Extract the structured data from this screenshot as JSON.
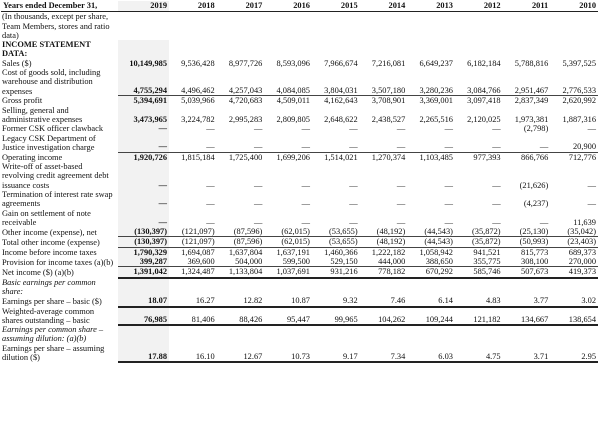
{
  "header": {
    "title": "Years ended December 31,",
    "note": "(In thousands, except per share, Team Members, stores and ratio data)",
    "years": [
      "2019",
      "2018",
      "2017",
      "2016",
      "2015",
      "2014",
      "2013",
      "2012",
      "2011",
      "2010"
    ]
  },
  "rows": [
    {
      "label": "INCOME STATEMENT DATA:",
      "type": "section",
      "values": []
    },
    {
      "label": "Sales ($)",
      "values": [
        "10,149,985",
        "9,536,428",
        "8,977,726",
        "8,593,096",
        "7,966,674",
        "7,216,081",
        "6,649,237",
        "6,182,184",
        "5,788,816",
        "5,397,525"
      ]
    },
    {
      "label": "Cost of goods sold, including warehouse and distribution expenses",
      "type": "rule",
      "values": [
        "4,755,294",
        "4,496,462",
        "4,257,043",
        "4,084,085",
        "3,804,031",
        "3,507,180",
        "3,280,236",
        "3,084,766",
        "2,951,467",
        "2,776,533"
      ]
    },
    {
      "label": "Gross profit",
      "values": [
        "5,394,691",
        "5,039,966",
        "4,720,683",
        "4,509,011",
        "4,162,643",
        "3,708,901",
        "3,369,001",
        "3,097,418",
        "2,837,349",
        "2,620,992"
      ]
    },
    {
      "label": "Selling, general and administrative expenses",
      "values": [
        "3,473,965",
        "3,224,782",
        "2,995,283",
        "2,809,805",
        "2,648,622",
        "2,438,527",
        "2,265,516",
        "2,120,025",
        "1,973,381",
        "1,887,316"
      ]
    },
    {
      "label": "Former CSK officer clawback",
      "values": [
        "—",
        "—",
        "—",
        "—",
        "—",
        "—",
        "—",
        "—",
        "(2,798)",
        "—"
      ]
    },
    {
      "label": "Legacy CSK Department of Justice investigation charge",
      "type": "rule",
      "values": [
        "—",
        "—",
        "—",
        "—",
        "—",
        "—",
        "—",
        "—",
        "—",
        "20,900"
      ]
    },
    {
      "label": "Operating income",
      "values": [
        "1,920,726",
        "1,815,184",
        "1,725,400",
        "1,699,206",
        "1,514,021",
        "1,270,374",
        "1,103,485",
        "977,393",
        "866,766",
        "712,776"
      ]
    },
    {
      "label": "Write-off of asset-based revolving credit agreement debt issuance costs",
      "values": [
        "—",
        "—",
        "—",
        "—",
        "—",
        "—",
        "—",
        "—",
        "(21,626)",
        "—"
      ]
    },
    {
      "label": "Termination of interest rate swap agreements",
      "values": [
        "—",
        "—",
        "—",
        "—",
        "—",
        "—",
        "—",
        "—",
        "(4,237)",
        "—"
      ]
    },
    {
      "label": "Gain on settlement of note receivable",
      "values": [
        "—",
        "—",
        "—",
        "—",
        "—",
        "—",
        "—",
        "—",
        "—",
        "11,639"
      ]
    },
    {
      "label": "Other income (expense), net",
      "type": "rule",
      "values": [
        "(130,397)",
        "(121,097)",
        "(87,596)",
        "(62,015)",
        "(53,655)",
        "(48,192)",
        "(44,543)",
        "(35,872)",
        "(25,130)",
        "(35,042)"
      ]
    },
    {
      "label": "Total other income (expense)",
      "type": "rule",
      "values": [
        "(130,397)",
        "(121,097)",
        "(87,596)",
        "(62,015)",
        "(53,655)",
        "(48,192)",
        "(44,543)",
        "(35,872)",
        "(50,993)",
        "(23,403)"
      ]
    },
    {
      "label": "Income before income taxes",
      "values": [
        "1,790,329",
        "1,694,087",
        "1,637,804",
        "1,637,191",
        "1,460,366",
        "1,222,182",
        "1,058,942",
        "941,521",
        "815,773",
        "689,373"
      ]
    },
    {
      "label": "Provision for income taxes (a)(b)",
      "type": "rule",
      "values": [
        "399,287",
        "369,600",
        "504,000",
        "599,500",
        "529,150",
        "444,000",
        "388,650",
        "355,775",
        "308,100",
        "270,000"
      ]
    },
    {
      "label": "Net income ($) (a)(b)",
      "type": "double",
      "values": [
        "1,391,042",
        "1,324,487",
        "1,133,804",
        "1,037,691",
        "931,216",
        "778,182",
        "670,292",
        "585,746",
        "507,673",
        "419,373"
      ]
    },
    {
      "label": "Basic earnings per common share:",
      "type": "italic",
      "values": []
    },
    {
      "label": "Earnings per share – basic ($)",
      "type": "double",
      "values": [
        "18.07",
        "16.27",
        "12.82",
        "10.87",
        "9.32",
        "7.46",
        "6.14",
        "4.83",
        "3.77",
        "3.02"
      ]
    },
    {
      "label": "Weighted-average common shares outstanding – basic",
      "type": "double",
      "values": [
        "76,985",
        "81,406",
        "88,426",
        "95,447",
        "99,965",
        "104,262",
        "109,244",
        "121,182",
        "134,667",
        "138,654"
      ]
    },
    {
      "label": "Earnings per common share – assuming dilution: (a)(b)",
      "type": "italic",
      "values": []
    },
    {
      "label": "Earnings per share – assuming dilution ($)",
      "type": "double",
      "values": [
        "17.88",
        "16.10",
        "12.67",
        "10.73",
        "9.17",
        "7.34",
        "6.03",
        "4.75",
        "3.71",
        "2.95"
      ]
    }
  ]
}
